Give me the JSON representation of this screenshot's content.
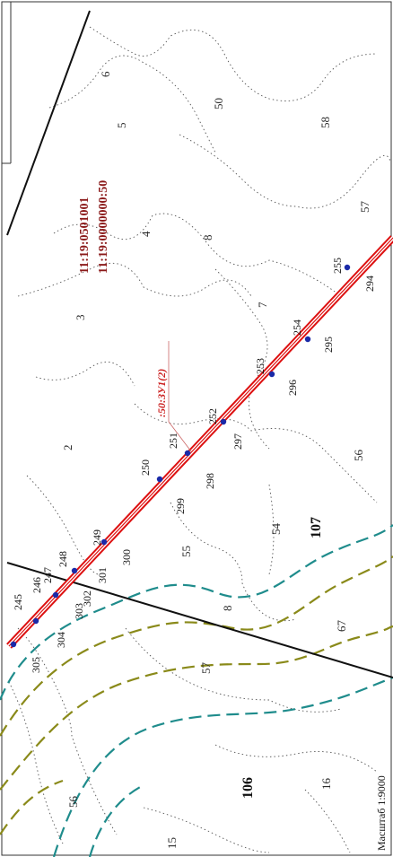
{
  "map": {
    "cadastral_numbers": [
      "11:19:0501001",
      "11:19:0000000:50"
    ],
    "zu_label": ":50:ЗУ1(2)",
    "scale_label": "Масштаб 1:9000",
    "quarters": [
      "107",
      "106"
    ],
    "parcels": [
      "6",
      "5",
      "50",
      "58",
      "4",
      "8",
      "57",
      "3",
      "7",
      "2",
      "56",
      "54",
      "55",
      "8",
      "57",
      "67",
      "16",
      "56",
      "15"
    ],
    "points_upper": [
      "245",
      "246",
      "247",
      "248",
      "249",
      "250",
      "251",
      "252",
      "253",
      "254",
      "255"
    ],
    "points_lower": [
      "305",
      "304",
      "303",
      "302",
      "301",
      "300",
      "299",
      "298",
      "297",
      "296",
      "295",
      "294"
    ],
    "colors": {
      "route": "#dd1111",
      "route_nodes": "#1a2aa8",
      "contour_teal": "#1f8c8c",
      "contour_olive": "#8a8a1a",
      "boundary": "#111111",
      "cadastral_text": "#8b1a1a"
    }
  }
}
